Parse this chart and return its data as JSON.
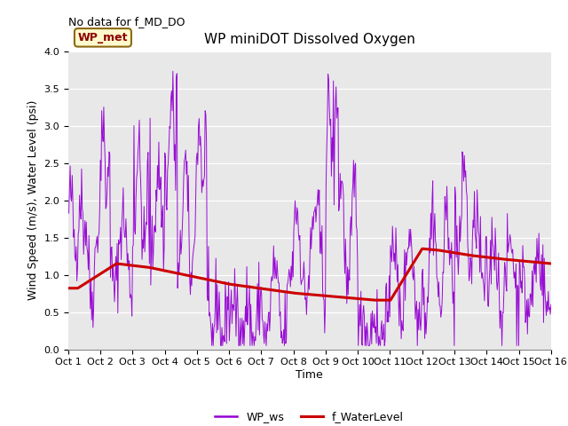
{
  "title": "WP miniDOT Dissolved Oxygen",
  "ylabel": "Wind Speed (m/s), Water Level (psi)",
  "xlabel": "Time",
  "annotation_text": "No data for f_MD_DO",
  "box_label": "WP_met",
  "ylim": [
    0.0,
    4.0
  ],
  "yticks": [
    0.0,
    0.5,
    1.0,
    1.5,
    2.0,
    2.5,
    3.0,
    3.5,
    4.0
  ],
  "xtick_labels": [
    "Oct 1",
    "Oct 2",
    "Oct 3",
    "Oct 4",
    "Oct 5",
    "Oct 6",
    "Oct 7",
    "Oct 8",
    "Oct 9",
    "Oct 10",
    "Oct 11",
    "Oct 12",
    "Oct 13",
    "Oct 14",
    "Oct 15",
    "Oct 16"
  ],
  "wp_ws_color": "#9400D3",
  "f_wl_color": "#CC0000",
  "bg_color": "#E8E8E8",
  "legend_ws_label": "WP_ws",
  "legend_wl_label": "f_WaterLevel",
  "title_fontsize": 11,
  "label_fontsize": 9,
  "tick_fontsize": 8,
  "annot_fontsize": 9
}
